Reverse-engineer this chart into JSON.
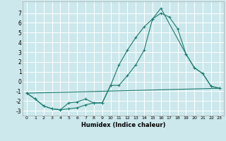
{
  "xlabel": "Humidex (Indice chaleur)",
  "background_color": "#cce8ec",
  "grid_color": "#ffffff",
  "line_color": "#1a7a6e",
  "series": [
    {
      "x": [
        0,
        1,
        2,
        3,
        4,
        5,
        6,
        7,
        8,
        9,
        10,
        11,
        12,
        13,
        14,
        15,
        16,
        19,
        20,
        21,
        22,
        23
      ],
      "y": [
        -1.2,
        -1.8,
        -2.5,
        -2.8,
        -2.9,
        -2.8,
        -2.7,
        -2.4,
        -2.2,
        -2.2,
        -0.4,
        1.7,
        3.2,
        4.5,
        5.6,
        6.4,
        7.5,
        2.8,
        1.4,
        0.8,
        -0.5,
        -0.7
      ]
    },
    {
      "x": [
        0,
        1,
        2,
        3,
        4,
        5,
        6,
        7,
        8,
        9,
        10,
        11,
        12,
        13,
        14,
        15,
        16,
        17,
        18,
        19,
        20,
        21,
        22,
        23
      ],
      "y": [
        -1.2,
        -1.8,
        -2.5,
        -2.8,
        -2.9,
        -2.2,
        -2.1,
        -1.8,
        -2.2,
        -2.2,
        -0.4,
        -0.4,
        0.6,
        1.7,
        3.2,
        6.4,
        7.0,
        6.6,
        5.4,
        2.8,
        1.4,
        0.8,
        -0.5,
        -0.7
      ]
    },
    {
      "x": [
        0,
        23
      ],
      "y": [
        -1.2,
        -0.7
      ]
    }
  ],
  "xlim": [
    -0.5,
    23.5
  ],
  "ylim": [
    -3.5,
    8.2
  ],
  "xticks": [
    0,
    1,
    2,
    3,
    4,
    5,
    6,
    7,
    8,
    9,
    10,
    11,
    12,
    13,
    14,
    15,
    16,
    17,
    18,
    19,
    20,
    21,
    22,
    23
  ],
  "yticks": [
    -3,
    -2,
    -1,
    0,
    1,
    2,
    3,
    4,
    5,
    6,
    7
  ],
  "marker": "+"
}
